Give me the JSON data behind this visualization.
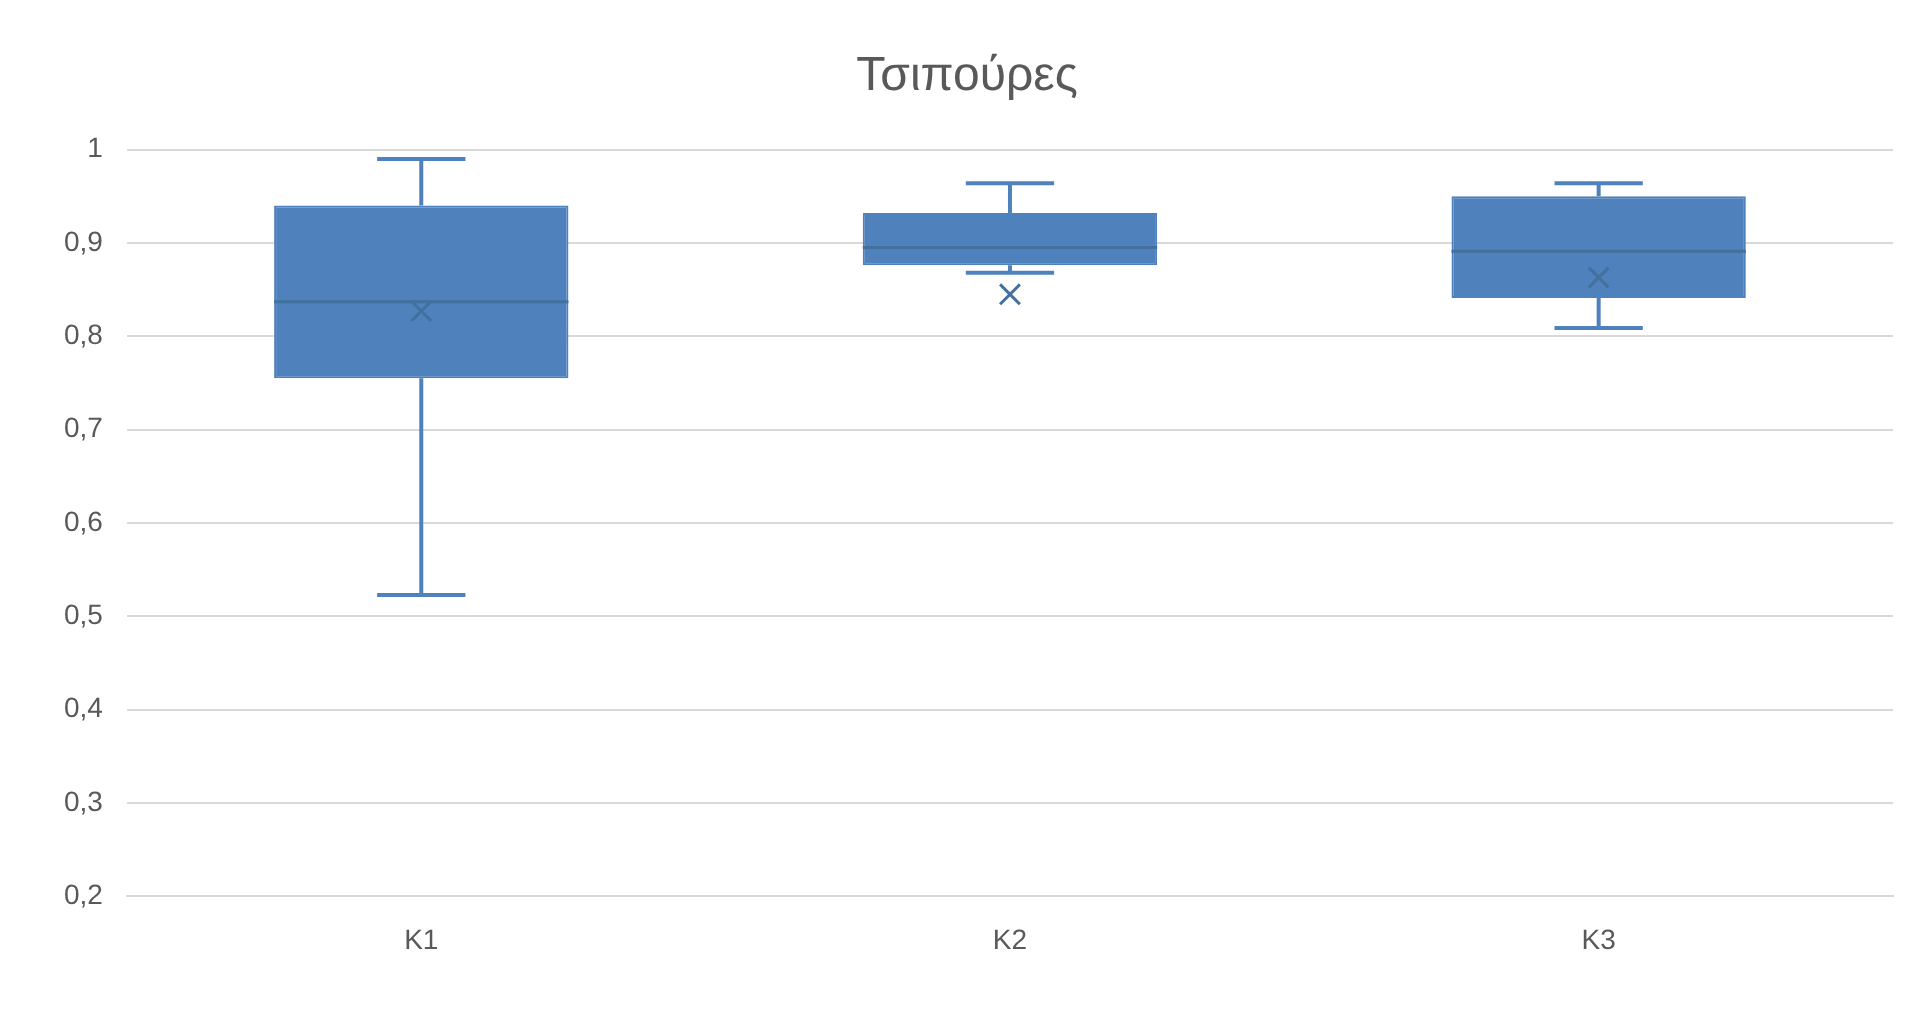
{
  "chart_data": {
    "type": "box",
    "title": "Τσιπούρες",
    "categories": [
      "K1",
      "K2",
      "K3"
    ],
    "color": "#4f81bd",
    "boxes": [
      {
        "low": 0.523,
        "q1": 0.755,
        "median": 0.837,
        "q3": 0.94,
        "high": 0.99,
        "mean": 0.827
      },
      {
        "low": 0.868,
        "q1": 0.876,
        "median": 0.895,
        "q3": 0.932,
        "high": 0.964,
        "mean": 0.845
      },
      {
        "low": 0.809,
        "q1": 0.841,
        "median": 0.891,
        "q3": 0.95,
        "high": 0.964,
        "mean": 0.863
      }
    ],
    "ylim": [
      0.2,
      1
    ],
    "yticks": [
      {
        "value": 0.2,
        "label": "0,2"
      },
      {
        "value": 0.3,
        "label": "0,3"
      },
      {
        "value": 0.4,
        "label": "0,4"
      },
      {
        "value": 0.5,
        "label": "0,5"
      },
      {
        "value": 0.6,
        "label": "0,6"
      },
      {
        "value": 0.7,
        "label": "0,7"
      },
      {
        "value": 0.8,
        "label": "0,8"
      },
      {
        "value": 0.9,
        "label": "0,9"
      },
      1
    ],
    "grid": "y",
    "legend": false
  }
}
